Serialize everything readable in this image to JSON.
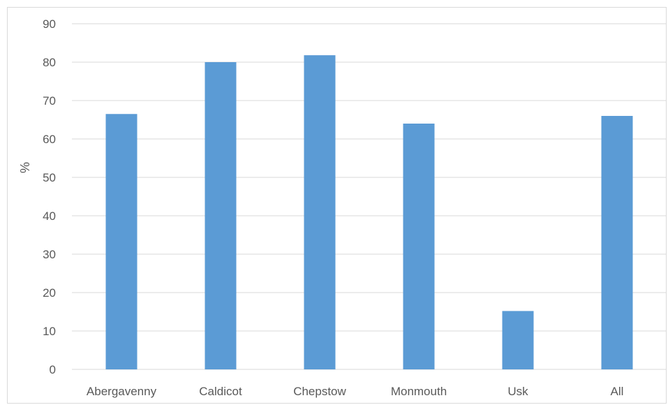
{
  "chart_data": {
    "type": "bar",
    "title": "",
    "xlabel": "",
    "ylabel": "%",
    "categories": [
      "Abergavenny",
      "Caldicot",
      "Chepstow",
      "Monmouth",
      "Usk",
      "All"
    ],
    "values": [
      66.5,
      80,
      81.8,
      64,
      15.2,
      66
    ],
    "ylim": [
      0,
      90
    ],
    "yticks": [
      0,
      10,
      20,
      30,
      40,
      50,
      60,
      70,
      80,
      90
    ],
    "grid": true,
    "legend": "none",
    "bar_color": "#5b9bd5",
    "grid_color": "#d9d9d9",
    "text_color": "#595959"
  }
}
